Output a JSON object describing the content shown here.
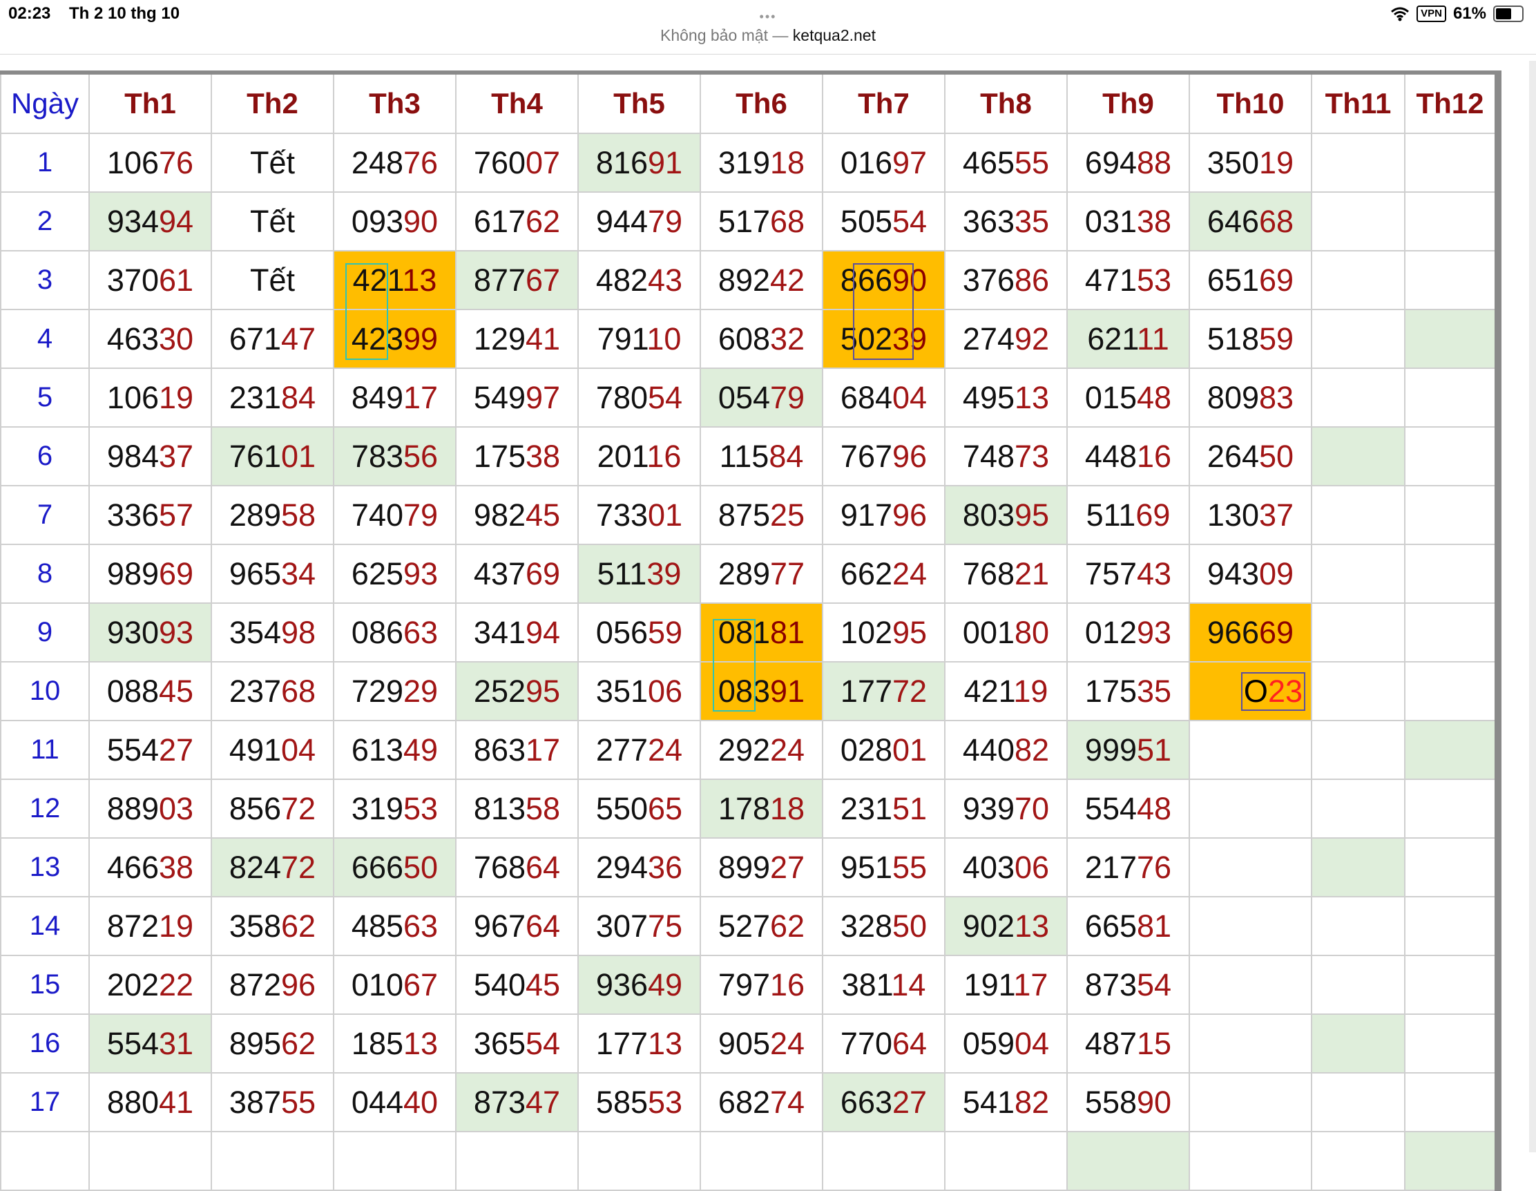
{
  "status_bar": {
    "time": "02:23",
    "date": "Th 2 10 thg 10",
    "vpn": "VPN",
    "battery": "61%"
  },
  "address_bar": {
    "security": "Không bảo mật",
    "separator": " — ",
    "host": "ketqua2.net"
  },
  "colors": {
    "header_text": "#8a0f0f",
    "day_text": "#1a1ac8",
    "last_two_digits": "#a11515",
    "green_cell": "#dfeedb",
    "orange_cell": "#ffbd00"
  },
  "table": {
    "day_header": "Ngày",
    "months": [
      "Th1",
      "Th2",
      "Th3",
      "Th4",
      "Th5",
      "Th6",
      "Th7",
      "Th8",
      "Th9",
      "Th10",
      "Th11",
      "Th12"
    ],
    "rows": [
      {
        "day": "1",
        "cells": [
          {
            "v": "10676"
          },
          {
            "v": "Tết"
          },
          {
            "v": "24876"
          },
          {
            "v": "76007"
          },
          {
            "v": "81691",
            "bg": "green"
          },
          {
            "v": "31918"
          },
          {
            "v": "01697"
          },
          {
            "v": "46555"
          },
          {
            "v": "69488"
          },
          {
            "v": "35019"
          },
          {
            "v": ""
          },
          {
            "v": ""
          }
        ]
      },
      {
        "day": "2",
        "cells": [
          {
            "v": "93494",
            "bg": "green"
          },
          {
            "v": "Tết"
          },
          {
            "v": "09390"
          },
          {
            "v": "61762"
          },
          {
            "v": "94479"
          },
          {
            "v": "51768"
          },
          {
            "v": "50554"
          },
          {
            "v": "36335"
          },
          {
            "v": "03138"
          },
          {
            "v": "64668",
            "bg": "green"
          },
          {
            "v": ""
          },
          {
            "v": ""
          }
        ]
      },
      {
        "day": "3",
        "cells": [
          {
            "v": "37061"
          },
          {
            "v": "Tết"
          },
          {
            "v": "42113",
            "bg": "orange"
          },
          {
            "v": "87767",
            "bg": "green"
          },
          {
            "v": "48243"
          },
          {
            "v": "89242"
          },
          {
            "v": "86690",
            "bg": "orange"
          },
          {
            "v": "37686"
          },
          {
            "v": "47153"
          },
          {
            "v": "65169"
          },
          {
            "v": ""
          },
          {
            "v": ""
          }
        ]
      },
      {
        "day": "4",
        "cells": [
          {
            "v": "46330"
          },
          {
            "v": "67147"
          },
          {
            "v": "42399",
            "bg": "orange"
          },
          {
            "v": "12941"
          },
          {
            "v": "79110"
          },
          {
            "v": "60832"
          },
          {
            "v": "50239",
            "bg": "orange"
          },
          {
            "v": "27492"
          },
          {
            "v": "62111",
            "bg": "green"
          },
          {
            "v": "51859"
          },
          {
            "v": ""
          },
          {
            "v": "",
            "bg": "green"
          }
        ]
      },
      {
        "day": "5",
        "cells": [
          {
            "v": "10619"
          },
          {
            "v": "23184"
          },
          {
            "v": "84917"
          },
          {
            "v": "54997"
          },
          {
            "v": "78054"
          },
          {
            "v": "05479",
            "bg": "green"
          },
          {
            "v": "68404"
          },
          {
            "v": "49513"
          },
          {
            "v": "01548"
          },
          {
            "v": "80983"
          },
          {
            "v": ""
          },
          {
            "v": ""
          }
        ]
      },
      {
        "day": "6",
        "cells": [
          {
            "v": "98437"
          },
          {
            "v": "76101",
            "bg": "green"
          },
          {
            "v": "78356",
            "bg": "green"
          },
          {
            "v": "17538"
          },
          {
            "v": "20116"
          },
          {
            "v": "11584"
          },
          {
            "v": "76796"
          },
          {
            "v": "74873"
          },
          {
            "v": "44816"
          },
          {
            "v": "26450"
          },
          {
            "v": "",
            "bg": "green"
          },
          {
            "v": ""
          }
        ]
      },
      {
        "day": "7",
        "cells": [
          {
            "v": "33657"
          },
          {
            "v": "28958"
          },
          {
            "v": "74079"
          },
          {
            "v": "98245"
          },
          {
            "v": "73301"
          },
          {
            "v": "87525"
          },
          {
            "v": "91796"
          },
          {
            "v": "80395",
            "bg": "green"
          },
          {
            "v": "51169"
          },
          {
            "v": "13037"
          },
          {
            "v": ""
          },
          {
            "v": ""
          }
        ]
      },
      {
        "day": "8",
        "cells": [
          {
            "v": "98969"
          },
          {
            "v": "96534"
          },
          {
            "v": "62593"
          },
          {
            "v": "43769"
          },
          {
            "v": "51139",
            "bg": "green"
          },
          {
            "v": "28977"
          },
          {
            "v": "66224"
          },
          {
            "v": "76821"
          },
          {
            "v": "75743"
          },
          {
            "v": "94309"
          },
          {
            "v": ""
          },
          {
            "v": ""
          }
        ]
      },
      {
        "day": "9",
        "cells": [
          {
            "v": "93093",
            "bg": "green"
          },
          {
            "v": "35498"
          },
          {
            "v": "08663"
          },
          {
            "v": "34194"
          },
          {
            "v": "05659"
          },
          {
            "v": "08181",
            "bg": "orange"
          },
          {
            "v": "10295"
          },
          {
            "v": "00180"
          },
          {
            "v": "01293"
          },
          {
            "v": "96669",
            "bg": "orange"
          },
          {
            "v": ""
          },
          {
            "v": ""
          }
        ]
      },
      {
        "day": "10",
        "cells": [
          {
            "v": "08845"
          },
          {
            "v": "23768"
          },
          {
            "v": "72929"
          },
          {
            "v": "25295",
            "bg": "green"
          },
          {
            "v": "35106"
          },
          {
            "v": "08391",
            "bg": "orange"
          },
          {
            "v": "17772",
            "bg": "green"
          },
          {
            "v": "42119"
          },
          {
            "v": "17535"
          },
          {
            "v": "",
            "bg": "orange",
            "special": {
              "a": "O",
              "b": "23"
            }
          },
          {
            "v": ""
          },
          {
            "v": ""
          }
        ]
      },
      {
        "day": "11",
        "cells": [
          {
            "v": "55427"
          },
          {
            "v": "49104"
          },
          {
            "v": "61349"
          },
          {
            "v": "86317"
          },
          {
            "v": "27724"
          },
          {
            "v": "29224"
          },
          {
            "v": "02801"
          },
          {
            "v": "44082"
          },
          {
            "v": "99951",
            "bg": "green"
          },
          {
            "v": ""
          },
          {
            "v": ""
          },
          {
            "v": "",
            "bg": "green"
          }
        ]
      },
      {
        "day": "12",
        "cells": [
          {
            "v": "88903"
          },
          {
            "v": "85672"
          },
          {
            "v": "31953"
          },
          {
            "v": "81358"
          },
          {
            "v": "55065"
          },
          {
            "v": "17818",
            "bg": "green"
          },
          {
            "v": "23151"
          },
          {
            "v": "93970"
          },
          {
            "v": "55448"
          },
          {
            "v": ""
          },
          {
            "v": ""
          },
          {
            "v": ""
          }
        ]
      },
      {
        "day": "13",
        "cells": [
          {
            "v": "46638"
          },
          {
            "v": "82472",
            "bg": "green"
          },
          {
            "v": "66650",
            "bg": "green"
          },
          {
            "v": "76864"
          },
          {
            "v": "29436"
          },
          {
            "v": "89927"
          },
          {
            "v": "95155"
          },
          {
            "v": "40306"
          },
          {
            "v": "21776"
          },
          {
            "v": ""
          },
          {
            "v": "",
            "bg": "green"
          },
          {
            "v": ""
          }
        ]
      },
      {
        "day": "14",
        "cells": [
          {
            "v": "87219"
          },
          {
            "v": "35862"
          },
          {
            "v": "48563"
          },
          {
            "v": "96764"
          },
          {
            "v": "30775"
          },
          {
            "v": "52762"
          },
          {
            "v": "32850"
          },
          {
            "v": "90213",
            "bg": "green"
          },
          {
            "v": "66581"
          },
          {
            "v": ""
          },
          {
            "v": ""
          },
          {
            "v": ""
          }
        ]
      },
      {
        "day": "15",
        "cells": [
          {
            "v": "20222"
          },
          {
            "v": "87296"
          },
          {
            "v": "01067"
          },
          {
            "v": "54045"
          },
          {
            "v": "93649",
            "bg": "green"
          },
          {
            "v": "79716"
          },
          {
            "v": "38114"
          },
          {
            "v": "19117"
          },
          {
            "v": "87354"
          },
          {
            "v": ""
          },
          {
            "v": ""
          },
          {
            "v": ""
          }
        ]
      },
      {
        "day": "16",
        "cells": [
          {
            "v": "55431",
            "bg": "green"
          },
          {
            "v": "89562"
          },
          {
            "v": "18513"
          },
          {
            "v": "36554"
          },
          {
            "v": "17713"
          },
          {
            "v": "90524"
          },
          {
            "v": "77064"
          },
          {
            "v": "05904"
          },
          {
            "v": "48715"
          },
          {
            "v": ""
          },
          {
            "v": "",
            "bg": "green"
          },
          {
            "v": ""
          }
        ]
      },
      {
        "day": "17",
        "cells": [
          {
            "v": "88041"
          },
          {
            "v": "38755"
          },
          {
            "v": "04440"
          },
          {
            "v": "87347",
            "bg": "green"
          },
          {
            "v": "58553"
          },
          {
            "v": "68274"
          },
          {
            "v": "66327",
            "bg": "green"
          },
          {
            "v": "54182"
          },
          {
            "v": "55890"
          },
          {
            "v": ""
          },
          {
            "v": ""
          },
          {
            "v": ""
          }
        ]
      },
      {
        "day": "",
        "cells": [
          {
            "v": ""
          },
          {
            "v": ""
          },
          {
            "v": ""
          },
          {
            "v": ""
          },
          {
            "v": ""
          },
          {
            "v": ""
          },
          {
            "v": ""
          },
          {
            "v": ""
          },
          {
            "v": "",
            "bg": "green"
          },
          {
            "v": ""
          },
          {
            "v": ""
          },
          {
            "v": "",
            "bg": "green"
          }
        ]
      }
    ]
  }
}
